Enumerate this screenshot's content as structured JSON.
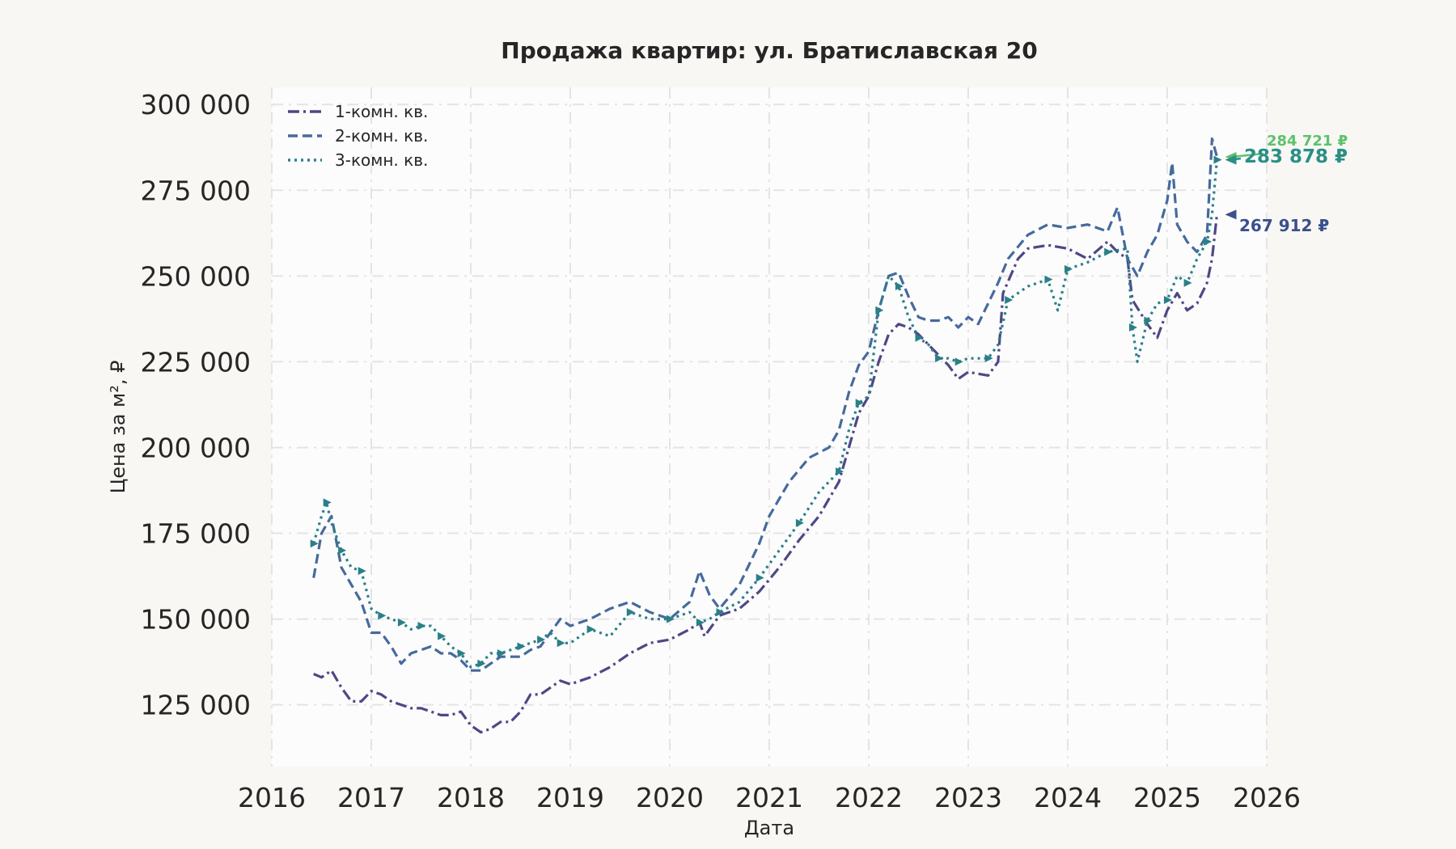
{
  "chart_data": {
    "type": "line",
    "title": "Продажа квартир: ул. Братиславская 20",
    "xlabel": "Дата",
    "ylabel": "Цена за м², ₽",
    "xlim": [
      2016.0,
      2026.0
    ],
    "ylim": [
      107000,
      305000
    ],
    "x_ticks": [
      "2016",
      "2017",
      "2018",
      "2019",
      "2020",
      "2021",
      "2022",
      "2023",
      "2024",
      "2025",
      "2026"
    ],
    "y_ticks": [
      "125 000",
      "150 000",
      "175 000",
      "200 000",
      "225 000",
      "250 000",
      "275 000",
      "300 000"
    ],
    "grid": true,
    "legend_position": "top-left",
    "series": [
      {
        "name": "1-комн. кв.",
        "color": "#4f4785",
        "style": "dashdot",
        "points": [
          [
            2016.42,
            134000
          ],
          [
            2016.5,
            133000
          ],
          [
            2016.6,
            135000
          ],
          [
            2016.7,
            130000
          ],
          [
            2016.8,
            126000
          ],
          [
            2016.9,
            126000
          ],
          [
            2017.0,
            129000
          ],
          [
            2017.1,
            128000
          ],
          [
            2017.2,
            126000
          ],
          [
            2017.3,
            125000
          ],
          [
            2017.4,
            124000
          ],
          [
            2017.5,
            124000
          ],
          [
            2017.6,
            123000
          ],
          [
            2017.7,
            122000
          ],
          [
            2017.8,
            122000
          ],
          [
            2017.9,
            123000
          ],
          [
            2018.0,
            119000
          ],
          [
            2018.1,
            117000
          ],
          [
            2018.2,
            118000
          ],
          [
            2018.3,
            120000
          ],
          [
            2018.4,
            120000
          ],
          [
            2018.5,
            123000
          ],
          [
            2018.6,
            128000
          ],
          [
            2018.7,
            128000
          ],
          [
            2018.8,
            130000
          ],
          [
            2018.9,
            132000
          ],
          [
            2019.0,
            131000
          ],
          [
            2019.2,
            133000
          ],
          [
            2019.4,
            136000
          ],
          [
            2019.6,
            140000
          ],
          [
            2019.8,
            143000
          ],
          [
            2020.0,
            144000
          ],
          [
            2020.2,
            147000
          ],
          [
            2020.3,
            149000
          ],
          [
            2020.35,
            145000
          ],
          [
            2020.5,
            151000
          ],
          [
            2020.7,
            153000
          ],
          [
            2020.9,
            158000
          ],
          [
            2021.1,
            165000
          ],
          [
            2021.3,
            173000
          ],
          [
            2021.5,
            180000
          ],
          [
            2021.7,
            190000
          ],
          [
            2021.8,
            200000
          ],
          [
            2021.9,
            210000
          ],
          [
            2022.0,
            215000
          ],
          [
            2022.1,
            225000
          ],
          [
            2022.2,
            233000
          ],
          [
            2022.3,
            236000
          ],
          [
            2022.4,
            235000
          ],
          [
            2022.5,
            233000
          ],
          [
            2022.6,
            230000
          ],
          [
            2022.7,
            227000
          ],
          [
            2022.8,
            224000
          ],
          [
            2022.9,
            220000
          ],
          [
            2023.0,
            222000
          ],
          [
            2023.2,
            221000
          ],
          [
            2023.3,
            225000
          ],
          [
            2023.35,
            245000
          ],
          [
            2023.5,
            255000
          ],
          [
            2023.6,
            258000
          ],
          [
            2023.8,
            259000
          ],
          [
            2024.0,
            258000
          ],
          [
            2024.2,
            255000
          ],
          [
            2024.4,
            260000
          ],
          [
            2024.5,
            257000
          ],
          [
            2024.6,
            255000
          ],
          [
            2024.65,
            243000
          ],
          [
            2024.8,
            236000
          ],
          [
            2024.9,
            232000
          ],
          [
            2025.0,
            240000
          ],
          [
            2025.1,
            245000
          ],
          [
            2025.2,
            240000
          ],
          [
            2025.3,
            242000
          ],
          [
            2025.4,
            248000
          ],
          [
            2025.45,
            255000
          ],
          [
            2025.5,
            267912
          ]
        ]
      },
      {
        "name": "2-комн. кв.",
        "color": "#466a9c",
        "style": "dashed",
        "points": [
          [
            2016.42,
            162000
          ],
          [
            2016.5,
            175000
          ],
          [
            2016.6,
            180000
          ],
          [
            2016.7,
            165000
          ],
          [
            2016.8,
            160000
          ],
          [
            2016.9,
            155000
          ],
          [
            2017.0,
            146000
          ],
          [
            2017.1,
            146000
          ],
          [
            2017.2,
            142000
          ],
          [
            2017.3,
            137000
          ],
          [
            2017.4,
            140000
          ],
          [
            2017.5,
            141000
          ],
          [
            2017.6,
            142000
          ],
          [
            2017.7,
            140000
          ],
          [
            2017.8,
            140000
          ],
          [
            2017.9,
            138000
          ],
          [
            2018.0,
            135000
          ],
          [
            2018.1,
            135000
          ],
          [
            2018.2,
            137000
          ],
          [
            2018.3,
            139000
          ],
          [
            2018.4,
            139000
          ],
          [
            2018.5,
            139000
          ],
          [
            2018.6,
            141000
          ],
          [
            2018.7,
            142000
          ],
          [
            2018.8,
            146000
          ],
          [
            2018.9,
            150000
          ],
          [
            2019.0,
            148000
          ],
          [
            2019.2,
            150000
          ],
          [
            2019.4,
            153000
          ],
          [
            2019.6,
            155000
          ],
          [
            2019.8,
            152000
          ],
          [
            2020.0,
            150000
          ],
          [
            2020.2,
            155000
          ],
          [
            2020.3,
            164000
          ],
          [
            2020.4,
            157000
          ],
          [
            2020.5,
            153000
          ],
          [
            2020.7,
            160000
          ],
          [
            2020.9,
            172000
          ],
          [
            2021.0,
            180000
          ],
          [
            2021.2,
            190000
          ],
          [
            2021.4,
            197000
          ],
          [
            2021.6,
            200000
          ],
          [
            2021.7,
            205000
          ],
          [
            2021.8,
            216000
          ],
          [
            2021.9,
            224000
          ],
          [
            2022.0,
            228000
          ],
          [
            2022.1,
            240000
          ],
          [
            2022.2,
            250000
          ],
          [
            2022.3,
            251000
          ],
          [
            2022.4,
            244000
          ],
          [
            2022.5,
            238000
          ],
          [
            2022.6,
            237000
          ],
          [
            2022.7,
            237000
          ],
          [
            2022.8,
            238000
          ],
          [
            2022.9,
            235000
          ],
          [
            2023.0,
            238000
          ],
          [
            2023.1,
            236000
          ],
          [
            2023.2,
            242000
          ],
          [
            2023.3,
            248000
          ],
          [
            2023.4,
            255000
          ],
          [
            2023.6,
            262000
          ],
          [
            2023.8,
            265000
          ],
          [
            2024.0,
            264000
          ],
          [
            2024.2,
            265000
          ],
          [
            2024.4,
            263000
          ],
          [
            2024.5,
            270000
          ],
          [
            2024.6,
            255000
          ],
          [
            2024.7,
            250000
          ],
          [
            2024.8,
            257000
          ],
          [
            2024.9,
            262000
          ],
          [
            2025.0,
            272000
          ],
          [
            2025.05,
            283000
          ],
          [
            2025.1,
            265000
          ],
          [
            2025.2,
            260000
          ],
          [
            2025.3,
            257000
          ],
          [
            2025.4,
            262000
          ],
          [
            2025.45,
            290000
          ],
          [
            2025.5,
            284721
          ]
        ]
      },
      {
        "name": "3-комн. кв.",
        "color": "#2a8088",
        "style": "dotted-triangle",
        "points": [
          [
            2016.42,
            172000
          ],
          [
            2016.5,
            180000
          ],
          [
            2016.55,
            184000
          ],
          [
            2016.6,
            178000
          ],
          [
            2016.7,
            170000
          ],
          [
            2016.8,
            165000
          ],
          [
            2016.9,
            164000
          ],
          [
            2017.0,
            153000
          ],
          [
            2017.1,
            151000
          ],
          [
            2017.2,
            150000
          ],
          [
            2017.3,
            149000
          ],
          [
            2017.4,
            147000
          ],
          [
            2017.5,
            148000
          ],
          [
            2017.6,
            148000
          ],
          [
            2017.7,
            145000
          ],
          [
            2017.8,
            142000
          ],
          [
            2017.9,
            140000
          ],
          [
            2018.0,
            136000
          ],
          [
            2018.1,
            137000
          ],
          [
            2018.2,
            140000
          ],
          [
            2018.3,
            140000
          ],
          [
            2018.4,
            141000
          ],
          [
            2018.5,
            142000
          ],
          [
            2018.6,
            143000
          ],
          [
            2018.7,
            144000
          ],
          [
            2018.8,
            146000
          ],
          [
            2018.9,
            143000
          ],
          [
            2019.0,
            143000
          ],
          [
            2019.2,
            147000
          ],
          [
            2019.4,
            145000
          ],
          [
            2019.6,
            152000
          ],
          [
            2019.8,
            150000
          ],
          [
            2020.0,
            150000
          ],
          [
            2020.2,
            152000
          ],
          [
            2020.3,
            149000
          ],
          [
            2020.4,
            150000
          ],
          [
            2020.5,
            152000
          ],
          [
            2020.7,
            155000
          ],
          [
            2020.9,
            162000
          ],
          [
            2021.1,
            170000
          ],
          [
            2021.3,
            178000
          ],
          [
            2021.5,
            187000
          ],
          [
            2021.7,
            193000
          ],
          [
            2021.8,
            205000
          ],
          [
            2021.9,
            213000
          ],
          [
            2022.0,
            215000
          ],
          [
            2022.1,
            240000
          ],
          [
            2022.2,
            250000
          ],
          [
            2022.3,
            247000
          ],
          [
            2022.4,
            238000
          ],
          [
            2022.5,
            232000
          ],
          [
            2022.6,
            230000
          ],
          [
            2022.7,
            226000
          ],
          [
            2022.8,
            226000
          ],
          [
            2022.9,
            225000
          ],
          [
            2023.0,
            226000
          ],
          [
            2023.2,
            226000
          ],
          [
            2023.3,
            230000
          ],
          [
            2023.4,
            243000
          ],
          [
            2023.6,
            247000
          ],
          [
            2023.8,
            249000
          ],
          [
            2023.9,
            240000
          ],
          [
            2024.0,
            252000
          ],
          [
            2024.2,
            254000
          ],
          [
            2024.4,
            257000
          ],
          [
            2024.6,
            258000
          ],
          [
            2024.65,
            235000
          ],
          [
            2024.7,
            225000
          ],
          [
            2024.8,
            237000
          ],
          [
            2024.9,
            242000
          ],
          [
            2025.0,
            243000
          ],
          [
            2025.1,
            250000
          ],
          [
            2025.2,
            248000
          ],
          [
            2025.3,
            255000
          ],
          [
            2025.4,
            260000
          ],
          [
            2025.45,
            268000
          ],
          [
            2025.5,
            283878
          ]
        ]
      }
    ],
    "annotations": [
      {
        "text": "284 721 ₽",
        "value": 284721,
        "color": "#5cc26b"
      },
      {
        "text": "283 878 ₽",
        "value": 283878,
        "color": "#2a8f86"
      },
      {
        "text": "267 912 ₽",
        "value": 267912,
        "color": "#3b4f8c"
      }
    ]
  }
}
